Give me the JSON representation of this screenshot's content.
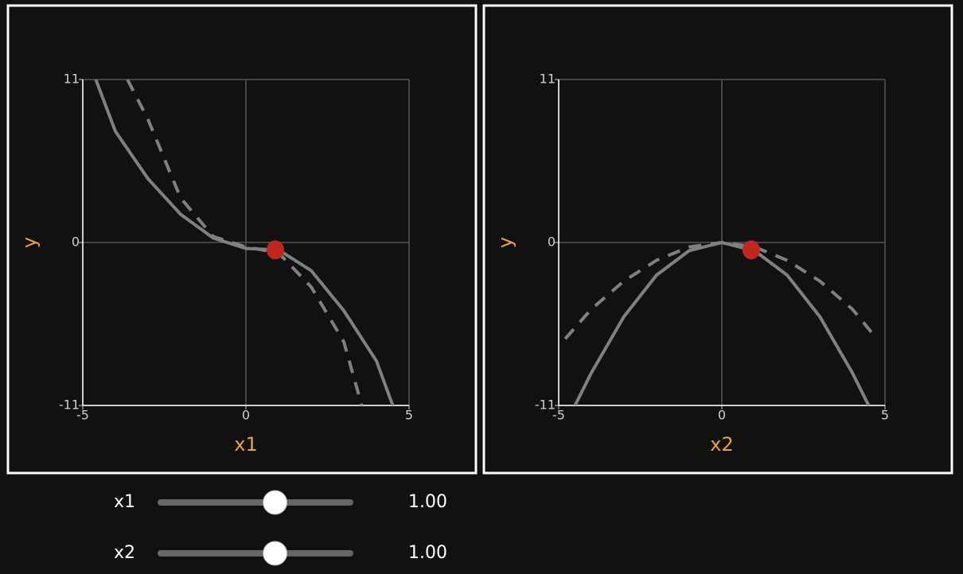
{
  "chart_data": [
    {
      "type": "line",
      "xlabel": "x1",
      "ylabel": "y",
      "xlim": [
        -5,
        5
      ],
      "ylim": [
        -11,
        11
      ],
      "xticks": [
        -5,
        0,
        5
      ],
      "yticks": [
        -11,
        0,
        11
      ],
      "grid": true,
      "series": [
        {
          "color": "#808080",
          "dashed": false,
          "x": [
            -4.6,
            -4,
            -3,
            -2,
            -1,
            0,
            1,
            2,
            3,
            4,
            4.5
          ],
          "values": [
            11,
            7.5,
            4.3,
            1.9,
            0.3,
            -0.4,
            -0.5,
            -1.9,
            -4.6,
            -8,
            -11
          ]
        },
        {
          "color": "#808080",
          "dashed": true,
          "x": [
            -3.63,
            -3,
            -2,
            -1,
            0,
            1,
            2,
            3,
            3.55
          ],
          "values": [
            11,
            8.3,
            3,
            0.4,
            -0.3,
            -0.7,
            -3,
            -6.7,
            -11
          ]
        }
      ],
      "marker": {
        "x": 0.9,
        "y": -0.5,
        "color": "#c0271e"
      }
    },
    {
      "type": "line",
      "xlabel": "x2",
      "ylabel": "y",
      "xlim": [
        -5,
        5
      ],
      "ylim": [
        -11,
        11
      ],
      "xticks": [
        -5,
        0,
        5
      ],
      "yticks": [
        -11,
        0,
        11
      ],
      "grid": true,
      "series": [
        {
          "color": "#808080",
          "dashed": false,
          "x": [
            -4.5,
            -4,
            -3,
            -2,
            -1,
            0,
            1,
            2,
            3,
            4,
            4.5
          ],
          "values": [
            -11,
            -8.8,
            -5,
            -2.2,
            -0.55,
            0,
            -0.55,
            -2.2,
            -5,
            -8.8,
            -11
          ]
        },
        {
          "color": "#808080",
          "dashed": true,
          "x": [
            -4.8,
            -4,
            -3,
            -2,
            -1,
            0,
            1,
            2,
            3,
            4,
            4.6
          ],
          "values": [
            -6.5,
            -4.5,
            -2.6,
            -1.2,
            -0.3,
            0,
            -0.3,
            -1.2,
            -2.6,
            -4.5,
            -6.1
          ]
        }
      ],
      "marker": {
        "x": 0.9,
        "y": -0.5,
        "color": "#c0271e"
      }
    }
  ],
  "controls": [
    {
      "label": "x1",
      "value": 1,
      "value_label": "1.00"
    },
    {
      "label": "x2",
      "value": 1,
      "value_label": "1.00"
    }
  ]
}
